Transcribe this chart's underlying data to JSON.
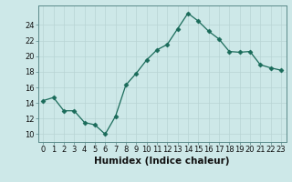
{
  "x": [
    0,
    1,
    2,
    3,
    4,
    5,
    6,
    7,
    8,
    9,
    10,
    11,
    12,
    13,
    14,
    15,
    16,
    17,
    18,
    19,
    20,
    21,
    22,
    23
  ],
  "y": [
    14.3,
    14.7,
    13.0,
    13.0,
    11.5,
    11.2,
    10.0,
    12.3,
    16.3,
    17.8,
    19.5,
    20.8,
    21.5,
    23.5,
    25.5,
    24.5,
    23.2,
    22.2,
    20.6,
    20.5,
    20.6,
    18.9,
    18.5,
    18.2
  ],
  "line_color": "#1a6b5a",
  "marker": "D",
  "marker_size": 2.5,
  "bg_color": "#cde8e8",
  "grid_color": "#b8d4d4",
  "xlabel": "Humidex (Indice chaleur)",
  "xlim": [
    -0.5,
    23.5
  ],
  "ylim": [
    9.0,
    26.5
  ],
  "yticks": [
    10,
    12,
    14,
    16,
    18,
    20,
    22,
    24
  ],
  "xticks": [
    0,
    1,
    2,
    3,
    4,
    5,
    6,
    7,
    8,
    9,
    10,
    11,
    12,
    13,
    14,
    15,
    16,
    17,
    18,
    19,
    20,
    21,
    22,
    23
  ],
  "tick_fontsize": 6,
  "xlabel_fontsize": 7.5
}
